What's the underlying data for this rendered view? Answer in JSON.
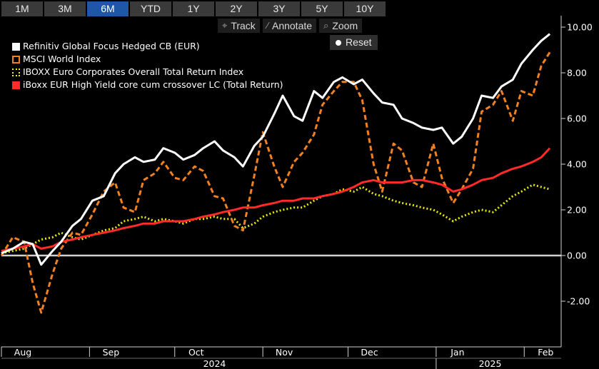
{
  "tabs": [
    "1M",
    "3M",
    "6M",
    "YTD",
    "1Y",
    "2Y",
    "3Y",
    "5Y",
    "10Y"
  ],
  "active_tab": "6M",
  "toolbar": {
    "track": "Track",
    "annotate": "Annotate",
    "zoom": "Zoom",
    "reset": "Reset"
  },
  "colors": {
    "background": "#000000",
    "active_tab": "#1f57a8",
    "tab": "#3a3a3a"
  },
  "chart_data": {
    "type": "line",
    "title": "",
    "xlabel": "",
    "ylabel": "",
    "ylim": [
      -4,
      10.5
    ],
    "yticks": [
      -2,
      0,
      2,
      4,
      6,
      8,
      10
    ],
    "ytick_labels": [
      "-2.00",
      "0.00",
      "2.00",
      "4.00",
      "6.00",
      "8.00",
      "10.00"
    ],
    "x_range": [
      "2024-08-01",
      "2025-02-14"
    ],
    "month_ticks": [
      {
        "label": "Aug",
        "date": "2024-08-01"
      },
      {
        "label": "Sep",
        "date": "2024-09-01"
      },
      {
        "label": "Oct",
        "date": "2024-10-01"
      },
      {
        "label": "Nov",
        "date": "2024-11-01"
      },
      {
        "label": "Dec",
        "date": "2024-12-01"
      },
      {
        "label": "Jan",
        "date": "2025-01-01"
      },
      {
        "label": "Feb",
        "date": "2025-02-01"
      }
    ],
    "year_ticks": [
      {
        "label": "2024",
        "date": "2024-10-15"
      },
      {
        "label": "2025",
        "date": "2025-01-20"
      }
    ],
    "grid": false,
    "legend_position": "top-left",
    "series": [
      {
        "name": "Refinitiv Global Focus Hedged CB (EUR)",
        "color": "#ffffff",
        "style": "solid",
        "x": [
          "2024-08-01",
          "2024-08-05",
          "2024-08-09",
          "2024-08-12",
          "2024-08-15",
          "2024-08-19",
          "2024-08-22",
          "2024-08-26",
          "2024-08-29",
          "2024-09-02",
          "2024-09-06",
          "2024-09-10",
          "2024-09-13",
          "2024-09-17",
          "2024-09-20",
          "2024-09-24",
          "2024-09-27",
          "2024-10-01",
          "2024-10-04",
          "2024-10-08",
          "2024-10-11",
          "2024-10-15",
          "2024-10-18",
          "2024-10-22",
          "2024-10-25",
          "2024-10-29",
          "2024-11-01",
          "2024-11-05",
          "2024-11-08",
          "2024-11-12",
          "2024-11-15",
          "2024-11-19",
          "2024-11-22",
          "2024-11-26",
          "2024-11-29",
          "2024-12-03",
          "2024-12-06",
          "2024-12-10",
          "2024-12-13",
          "2024-12-17",
          "2024-12-20",
          "2024-12-24",
          "2024-12-27",
          "2024-12-31",
          "2025-01-03",
          "2025-01-07",
          "2025-01-10",
          "2025-01-14",
          "2025-01-17",
          "2025-01-21",
          "2025-01-24",
          "2025-01-28",
          "2025-01-31",
          "2025-02-04",
          "2025-02-07",
          "2025-02-10"
        ],
        "y": [
          0.1,
          0.3,
          0.6,
          0.5,
          -0.4,
          0.2,
          0.6,
          1.3,
          1.6,
          2.4,
          2.6,
          3.6,
          4.0,
          4.3,
          4.1,
          4.2,
          4.7,
          4.5,
          4.2,
          4.4,
          4.7,
          5.0,
          4.6,
          4.3,
          3.9,
          4.8,
          5.2,
          6.2,
          7.0,
          6.1,
          5.9,
          7.2,
          6.9,
          7.6,
          7.8,
          7.5,
          7.7,
          7.1,
          6.7,
          6.6,
          6.0,
          5.8,
          5.6,
          5.5,
          5.6,
          4.9,
          5.2,
          6.0,
          7.0,
          6.9,
          7.4,
          7.7,
          8.4,
          9.0,
          9.4,
          9.7
        ]
      },
      {
        "name": "MSCI World Index",
        "color": "#f08020",
        "style": "dashed",
        "x": [
          "2024-08-01",
          "2024-08-05",
          "2024-08-09",
          "2024-08-12",
          "2024-08-15",
          "2024-08-19",
          "2024-08-22",
          "2024-08-26",
          "2024-08-29",
          "2024-09-02",
          "2024-09-06",
          "2024-09-10",
          "2024-09-13",
          "2024-09-17",
          "2024-09-20",
          "2024-09-24",
          "2024-09-27",
          "2024-10-01",
          "2024-10-04",
          "2024-10-08",
          "2024-10-11",
          "2024-10-15",
          "2024-10-18",
          "2024-10-22",
          "2024-10-25",
          "2024-10-29",
          "2024-11-01",
          "2024-11-05",
          "2024-11-08",
          "2024-11-12",
          "2024-11-15",
          "2024-11-19",
          "2024-11-22",
          "2024-11-26",
          "2024-11-29",
          "2024-12-03",
          "2024-12-06",
          "2024-12-10",
          "2024-12-13",
          "2024-12-17",
          "2024-12-20",
          "2024-12-24",
          "2024-12-27",
          "2024-12-31",
          "2025-01-03",
          "2025-01-07",
          "2025-01-10",
          "2025-01-14",
          "2025-01-17",
          "2025-01-21",
          "2025-01-24",
          "2025-01-28",
          "2025-01-31",
          "2025-02-04",
          "2025-02-07",
          "2025-02-10"
        ],
        "y": [
          0.0,
          0.8,
          0.6,
          -1.2,
          -2.5,
          -0.8,
          0.3,
          1.0,
          0.9,
          1.8,
          2.8,
          3.2,
          2.1,
          1.9,
          3.3,
          3.6,
          4.1,
          3.4,
          3.3,
          3.9,
          3.7,
          2.6,
          2.5,
          1.3,
          1.1,
          3.5,
          5.4,
          3.9,
          3.0,
          4.1,
          4.5,
          5.3,
          6.6,
          7.2,
          7.6,
          7.6,
          6.8,
          4.0,
          2.8,
          4.9,
          4.6,
          3.2,
          3.0,
          4.9,
          3.4,
          2.3,
          2.9,
          3.8,
          6.3,
          6.6,
          7.2,
          5.9,
          7.2,
          7.0,
          8.3,
          8.9
        ]
      },
      {
        "name": "IBOXX Euro Corporates Overall Total Return Index",
        "color": "#e6e600",
        "style": "dotted",
        "x": [
          "2024-08-01",
          "2024-08-05",
          "2024-08-09",
          "2024-08-12",
          "2024-08-15",
          "2024-08-19",
          "2024-08-22",
          "2024-08-26",
          "2024-08-29",
          "2024-09-02",
          "2024-09-06",
          "2024-09-10",
          "2024-09-13",
          "2024-09-17",
          "2024-09-20",
          "2024-09-24",
          "2024-09-27",
          "2024-10-01",
          "2024-10-04",
          "2024-10-08",
          "2024-10-11",
          "2024-10-15",
          "2024-10-18",
          "2024-10-22",
          "2024-10-25",
          "2024-10-29",
          "2024-11-01",
          "2024-11-05",
          "2024-11-08",
          "2024-11-12",
          "2024-11-15",
          "2024-11-19",
          "2024-11-22",
          "2024-11-26",
          "2024-11-29",
          "2024-12-03",
          "2024-12-06",
          "2024-12-10",
          "2024-12-13",
          "2024-12-17",
          "2024-12-20",
          "2024-12-24",
          "2024-12-27",
          "2024-12-31",
          "2025-01-03",
          "2025-01-07",
          "2025-01-10",
          "2025-01-14",
          "2025-01-17",
          "2025-01-21",
          "2025-01-24",
          "2025-01-28",
          "2025-01-31",
          "2025-02-04",
          "2025-02-07",
          "2025-02-10"
        ],
        "y": [
          0.1,
          0.2,
          0.3,
          0.5,
          0.7,
          0.8,
          1.0,
          0.8,
          0.7,
          0.9,
          1.1,
          1.2,
          1.5,
          1.6,
          1.7,
          1.5,
          1.6,
          1.5,
          1.4,
          1.6,
          1.6,
          1.7,
          1.6,
          1.6,
          1.2,
          1.4,
          1.7,
          1.9,
          2.0,
          2.1,
          2.1,
          2.4,
          2.6,
          2.7,
          2.9,
          2.8,
          3.0,
          2.7,
          2.6,
          2.4,
          2.3,
          2.2,
          2.1,
          2.0,
          1.8,
          1.5,
          1.7,
          1.9,
          2.0,
          1.9,
          2.2,
          2.6,
          2.8,
          3.1,
          3.0,
          2.9
        ]
      },
      {
        "name": "iBoxx EUR High Yield core cum crossover LC (Total Return)",
        "color": "#ff2a2a",
        "style": "solid",
        "x": [
          "2024-08-01",
          "2024-08-05",
          "2024-08-09",
          "2024-08-12",
          "2024-08-15",
          "2024-08-19",
          "2024-08-22",
          "2024-08-26",
          "2024-08-29",
          "2024-09-02",
          "2024-09-06",
          "2024-09-10",
          "2024-09-13",
          "2024-09-17",
          "2024-09-20",
          "2024-09-24",
          "2024-09-27",
          "2024-10-01",
          "2024-10-04",
          "2024-10-08",
          "2024-10-11",
          "2024-10-15",
          "2024-10-18",
          "2024-10-22",
          "2024-10-25",
          "2024-10-29",
          "2024-11-01",
          "2024-11-05",
          "2024-11-08",
          "2024-11-12",
          "2024-11-15",
          "2024-11-19",
          "2024-11-22",
          "2024-11-26",
          "2024-11-29",
          "2024-12-03",
          "2024-12-06",
          "2024-12-10",
          "2024-12-13",
          "2024-12-17",
          "2024-12-20",
          "2024-12-24",
          "2024-12-27",
          "2024-12-31",
          "2025-01-03",
          "2025-01-07",
          "2025-01-10",
          "2025-01-14",
          "2025-01-17",
          "2025-01-21",
          "2025-01-24",
          "2025-01-28",
          "2025-01-31",
          "2025-02-04",
          "2025-02-07",
          "2025-02-10"
        ],
        "y": [
          0.2,
          0.3,
          0.4,
          0.5,
          0.3,
          0.4,
          0.6,
          0.7,
          0.8,
          0.9,
          1.0,
          1.1,
          1.2,
          1.3,
          1.4,
          1.4,
          1.5,
          1.5,
          1.5,
          1.6,
          1.7,
          1.8,
          1.9,
          2.0,
          2.1,
          2.1,
          2.2,
          2.3,
          2.4,
          2.4,
          2.5,
          2.5,
          2.6,
          2.7,
          2.8,
          3.0,
          3.2,
          3.3,
          3.2,
          3.2,
          3.2,
          3.3,
          3.3,
          3.2,
          3.1,
          2.8,
          2.9,
          3.1,
          3.3,
          3.4,
          3.6,
          3.8,
          3.9,
          4.1,
          4.3,
          4.7
        ]
      }
    ]
  }
}
